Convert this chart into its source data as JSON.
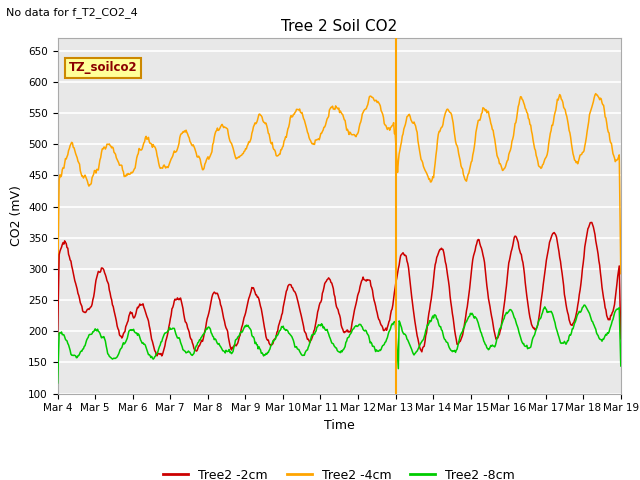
{
  "title": "Tree 2 Soil CO2",
  "top_left_note": "No data for f_T2_CO2_4",
  "xlabel": "Time",
  "ylabel": "CO2 (mV)",
  "ylim": [
    100,
    670
  ],
  "yticks": [
    100,
    150,
    200,
    250,
    300,
    350,
    400,
    450,
    500,
    550,
    600,
    650
  ],
  "x_labels": [
    "Mar 4",
    "Mar 5",
    "Mar 6",
    "Mar 7",
    "Mar 8",
    "Mar 9",
    "Mar 10",
    "Mar 11",
    "Mar 12",
    "Mar 13",
    "Mar 14",
    "Mar 15",
    "Mar 16",
    "Mar 17",
    "Mar 18",
    "Mar 19"
  ],
  "legend_box_text": "TZ_soilco2",
  "legend_box_color": "#FFFF99",
  "legend_box_border": "#CC8800",
  "line_red_label": "Tree2 -2cm",
  "line_orange_label": "Tree2 -4cm",
  "line_green_label": "Tree2 -8cm",
  "line_red_color": "#CC0000",
  "line_orange_color": "#FFA500",
  "line_green_color": "#00CC00",
  "vertical_line_color": "#FFA500",
  "plot_bg_color": "#E8E8E8"
}
